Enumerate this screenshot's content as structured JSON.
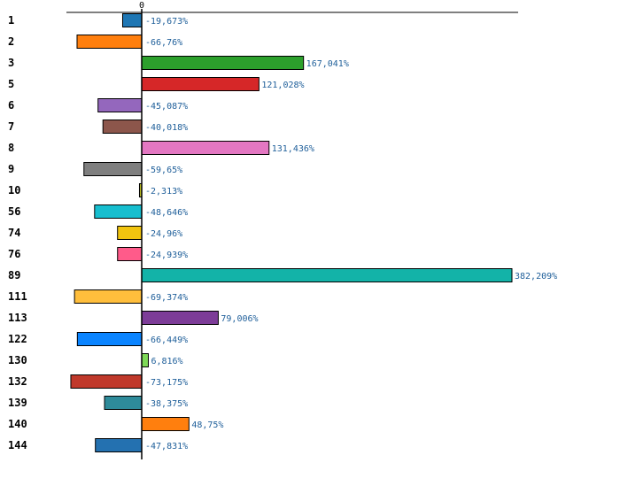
{
  "chart_data": {
    "type": "bar",
    "orientation": "horizontal",
    "title": "",
    "xlabel": "",
    "ylabel": "",
    "xlim": [
      -100,
      400
    ],
    "grid": false,
    "legend": "none",
    "tick_labels": [
      "0"
    ],
    "categories": [
      "1",
      "2",
      "3",
      "5",
      "6",
      "7",
      "8",
      "9",
      "10",
      "56",
      "74",
      "76",
      "89",
      "111",
      "113",
      "122",
      "130",
      "132",
      "139",
      "140",
      "144"
    ],
    "values": [
      -19.673,
      -66.76,
      167.041,
      121.028,
      -45.087,
      -40.018,
      131.436,
      -59.65,
      -2.313,
      -48.646,
      -24.96,
      -24.939,
      382.209,
      -69.374,
      79.006,
      -66.449,
      6.816,
      -73.175,
      -38.375,
      48.75,
      -47.831
    ],
    "value_labels": [
      "-19,673%",
      "-66,76%",
      "167,041%",
      "121,028%",
      "-45,087%",
      "-40,018%",
      "131,436%",
      "-59,65%",
      "-2,313%",
      "-48,646%",
      "-24,96%",
      "-24,939%",
      "382,209%",
      "-69,374%",
      "79,006%",
      "-66,449%",
      "6,816%",
      "-73,175%",
      "-38,375%",
      "48,75%",
      "-47,831%"
    ],
    "colors": [
      "#1f77b4",
      "#ff7f0e",
      "#2ca02c",
      "#d62728",
      "#9467bd",
      "#8c564b",
      "#e377c2",
      "#7f7f7f",
      "#bcbd22",
      "#17becf",
      "#f1c40f",
      "#ff5b8a",
      "#13b3a8",
      "#ffbe3c",
      "#7d3c98",
      "#0a84ff",
      "#7ed957",
      "#c0392b",
      "#2e8b9a",
      "#ff7f0e",
      "#2471b0"
    ]
  }
}
